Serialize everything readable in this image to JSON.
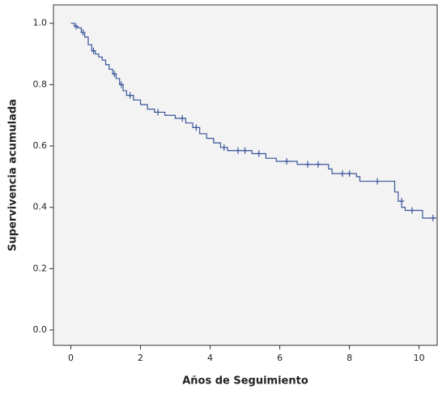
{
  "chart_data": {
    "type": "step",
    "x_label": "Años de Seguimiento",
    "y_label": "Supervivencia acumulada",
    "xlim": [
      -0.5,
      10.52
    ],
    "ylim": [
      -0.05,
      1.06
    ],
    "xticks": [
      0,
      2,
      4,
      6,
      8,
      10
    ],
    "yticks": [
      {
        "value": 0,
        "label": "0.0"
      },
      0.2,
      0.4,
      0.6,
      0.8,
      {
        "value": 1,
        "label": "1.0"
      }
    ],
    "color": "#3a559a",
    "background": "#f3f3f3",
    "x": [
      0,
      0.1,
      0.2,
      0.3,
      0.4,
      0.5,
      0.6,
      0.7,
      0.8,
      0.9,
      1.0,
      1.1,
      1.2,
      1.3,
      1.4,
      1.5,
      1.6,
      1.8,
      2.0,
      2.2,
      2.4,
      2.7,
      3.0,
      3.3,
      3.5,
      3.7,
      3.9,
      4.1,
      4.3,
      4.5,
      5.2,
      5.6,
      5.9,
      6.5,
      7.4,
      7.5,
      8.2,
      8.3,
      9.3,
      9.4,
      9.5,
      9.6,
      10.1,
      10.5
    ],
    "values": [
      1.0,
      0.99,
      0.985,
      0.97,
      0.955,
      0.93,
      0.91,
      0.9,
      0.89,
      0.88,
      0.865,
      0.85,
      0.835,
      0.82,
      0.8,
      0.78,
      0.765,
      0.75,
      0.735,
      0.72,
      0.71,
      0.7,
      0.69,
      0.675,
      0.66,
      0.64,
      0.625,
      0.61,
      0.595,
      0.585,
      0.575,
      0.56,
      0.55,
      0.54,
      0.525,
      0.51,
      0.5,
      0.485,
      0.45,
      0.42,
      0.4,
      0.39,
      0.365,
      0.365
    ],
    "censored": {
      "x": [
        0.15,
        0.35,
        0.65,
        1.25,
        1.45,
        1.7,
        2.5,
        3.2,
        3.6,
        4.4,
        4.8,
        5.0,
        5.4,
        6.2,
        6.8,
        7.1,
        7.8,
        8.0,
        8.8,
        9.5,
        9.8,
        10.4
      ],
      "values": [
        0.99,
        0.97,
        0.91,
        0.835,
        0.8,
        0.765,
        0.71,
        0.69,
        0.66,
        0.595,
        0.585,
        0.585,
        0.575,
        0.55,
        0.54,
        0.54,
        0.51,
        0.51,
        0.485,
        0.42,
        0.39,
        0.365
      ]
    }
  }
}
